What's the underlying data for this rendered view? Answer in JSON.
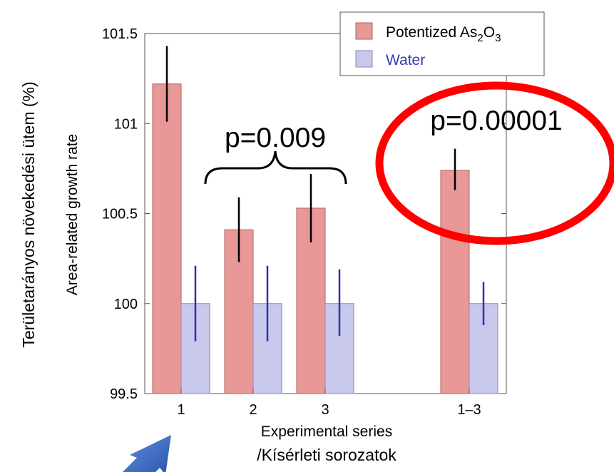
{
  "chart_data": {
    "type": "bar",
    "xlabel": "Experimental series",
    "xlabel2": "/Kísérleti sorozatok",
    "ylabel": "Area-related growth rate",
    "ylabel2": "Területarányos növekedési ütem (%)",
    "ylim": [
      99.5,
      101.5
    ],
    "yticks": [
      "99.5",
      "100",
      "100.5",
      "101",
      "101.5"
    ],
    "categories": [
      "1",
      "2",
      "3",
      "1–3"
    ],
    "legend_position": "top-right",
    "grid": false,
    "series": [
      {
        "name": "Potentized As2O3",
        "name_main": "Potentized As",
        "name_sub1": "2",
        "name_mid": "O",
        "name_sub2": "3",
        "color": "#e89896",
        "values": [
          101.22,
          100.41,
          100.53,
          100.74
        ],
        "err_low": [
          101.01,
          100.23,
          100.34,
          100.63
        ],
        "err_high": [
          101.43,
          100.59,
          100.72,
          100.86
        ]
      },
      {
        "name": "Water",
        "color": "#c8c8ea",
        "text_color": "#3a3ab0",
        "values": [
          100.0,
          100.0,
          100.0,
          100.0
        ],
        "err_low": [
          99.79,
          99.79,
          99.82,
          99.88
        ],
        "err_high": [
          100.21,
          100.21,
          100.19,
          100.12
        ]
      }
    ],
    "annotations": {
      "brace_label": "p=0.009",
      "circle_label": "p=0.00001"
    },
    "colors": {
      "bar_edge_red": "#b06060",
      "bar_edge_blue": "#8a8ab8",
      "error_red": "#000000",
      "error_blue": "#3030b0",
      "highlight_circle": "#ff0000",
      "arrow": "#2f5fb8"
    }
  }
}
